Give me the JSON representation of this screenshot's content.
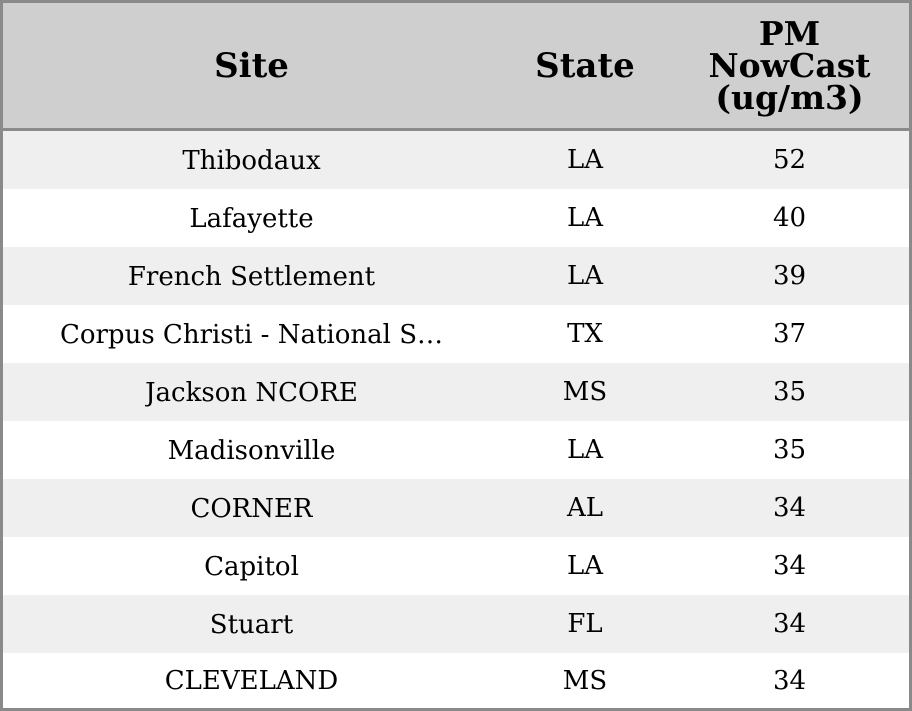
{
  "table": {
    "headers": {
      "site": "Site",
      "state": "State",
      "value_lines": [
        "PM",
        "NowCast",
        "(ug/m3)"
      ]
    },
    "rows": [
      {
        "site": "Thibodaux",
        "state": "LA",
        "value": "52"
      },
      {
        "site": "Lafayette",
        "state": "LA",
        "value": "40"
      },
      {
        "site": "French Settlement",
        "state": "LA",
        "value": "39"
      },
      {
        "site": "Corpus Christi - National S…",
        "state": "TX",
        "value": "37"
      },
      {
        "site": "Jackson NCORE",
        "state": "MS",
        "value": "35"
      },
      {
        "site": "Madisonville",
        "state": "LA",
        "value": "35"
      },
      {
        "site": "CORNER",
        "state": "AL",
        "value": "34"
      },
      {
        "site": "Capitol",
        "state": "LA",
        "value": "34"
      },
      {
        "site": "Stuart",
        "state": "FL",
        "value": "34"
      },
      {
        "site": "CLEVELAND",
        "state": "MS",
        "value": "34"
      }
    ]
  },
  "colors": {
    "header_bg": "#cfcfcf",
    "row_stripe": "#efefef",
    "border": "#8a8a8a"
  }
}
